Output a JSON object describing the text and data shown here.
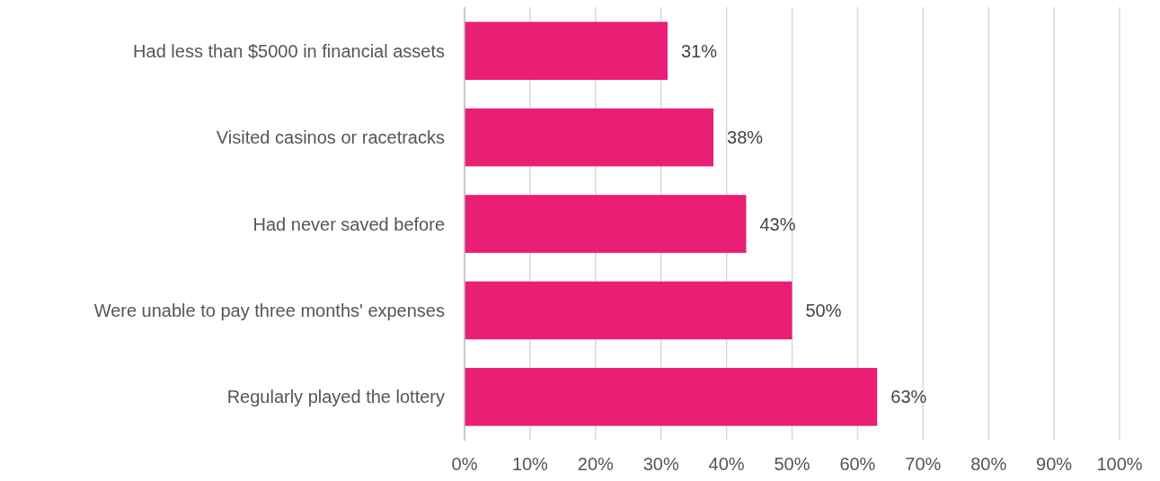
{
  "chart_data": {
    "type": "bar",
    "orientation": "horizontal",
    "categories": [
      "Had less than $5000 in financial assets",
      "Visited casinos or racetracks",
      "Had never saved before",
      "Were unable to pay three months' expenses",
      "Regularly played the lottery"
    ],
    "values": [
      31,
      38,
      43,
      50,
      63
    ],
    "value_labels": [
      "31%",
      "38%",
      "43%",
      "50%",
      "63%"
    ],
    "color": "#e91e74",
    "xlim": [
      0,
      100
    ],
    "xticks": [
      {
        "value": 0,
        "label": "0%"
      },
      {
        "value": 10,
        "label": "10%"
      },
      {
        "value": 20,
        "label": "20%"
      },
      {
        "value": 30,
        "label": "30%"
      },
      {
        "value": 40,
        "label": "40%"
      },
      {
        "value": 50,
        "label": "50%"
      },
      {
        "value": 60,
        "label": "60%"
      },
      {
        "value": 70,
        "label": "70%"
      },
      {
        "value": 80,
        "label": "80%"
      },
      {
        "value": 90,
        "label": "90%"
      },
      {
        "value": 100,
        "label": "100%"
      }
    ],
    "grid": "x"
  }
}
